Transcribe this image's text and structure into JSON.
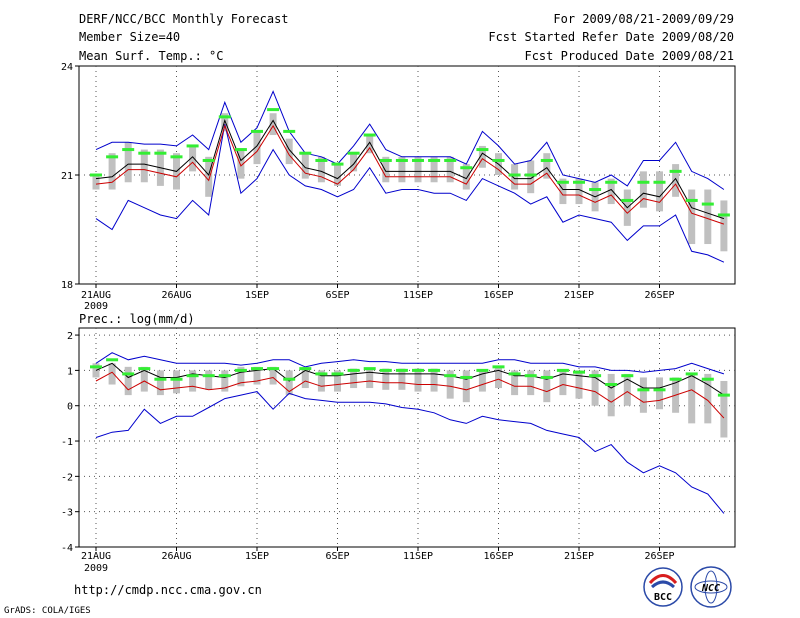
{
  "header": {
    "line1": "DERF/NCC/BCC Monthly Forecast",
    "line2": "Member Size=40",
    "line3": "Mean Surf. Temp.: °C",
    "right1": "For 2009/08/21-2009/09/29",
    "right2": "Fcst Started Refer Date 2009/08/20",
    "right3": "Fcst Produced Date 2009/08/21"
  },
  "lower_title": "Prec.: log(mm/d)",
  "footer": {
    "url": "http://cmdp.ncc.cma.gov.cn",
    "grads": "GrADS: COLA/IGES",
    "bcc_logo_text": "BCC",
    "ncc_logo_text": "NCC"
  },
  "colors": {
    "max_min": "#0000cc",
    "ensemble_mean": "#000000",
    "reference": "#cc0000",
    "member_dash": "#33ee33",
    "box": "#c0c0c0"
  },
  "chart_data": [
    {
      "type": "line",
      "title": "Mean Surf. Temp.: °C",
      "x_tick_labels": [
        "21AUG",
        "26AUG",
        "1SEP",
        "6SEP",
        "11SEP",
        "16SEP",
        "21SEP",
        "26SEP"
      ],
      "x_year_label": "2009",
      "y_tick_labels": [
        "18",
        "21",
        "24"
      ],
      "ylim": [
        18,
        24
      ],
      "days": 40,
      "series": [
        {
          "name": "max",
          "values": [
            21.7,
            21.9,
            21.9,
            21.85,
            21.85,
            21.8,
            22.1,
            21.7,
            23.0,
            21.9,
            22.3,
            23.3,
            22.2,
            21.6,
            21.5,
            21.3,
            21.8,
            22.4,
            21.7,
            21.5,
            21.5,
            21.5,
            21.5,
            21.3,
            22.2,
            21.8,
            21.3,
            21.4,
            21.9,
            21.0,
            20.9,
            20.8,
            21.0,
            20.7,
            21.4,
            21.4,
            21.9,
            21.1,
            20.9,
            20.6
          ]
        },
        {
          "name": "min",
          "values": [
            19.8,
            19.5,
            20.3,
            20.1,
            19.9,
            19.8,
            20.3,
            19.9,
            22.4,
            20.5,
            20.9,
            21.7,
            21.0,
            20.7,
            20.6,
            20.4,
            20.6,
            21.2,
            20.5,
            20.6,
            20.6,
            20.5,
            20.5,
            20.3,
            20.9,
            20.7,
            20.5,
            20.2,
            20.4,
            19.7,
            19.9,
            19.8,
            19.7,
            19.2,
            19.6,
            19.6,
            19.9,
            18.9,
            18.8,
            18.6
          ]
        },
        {
          "name": "ensemble mean",
          "values": [
            20.9,
            20.95,
            21.3,
            21.3,
            21.2,
            21.1,
            21.5,
            21.0,
            22.5,
            21.4,
            21.8,
            22.5,
            21.7,
            21.2,
            21.1,
            20.9,
            21.3,
            21.9,
            21.1,
            21.1,
            21.1,
            21.1,
            21.1,
            20.9,
            21.6,
            21.3,
            20.9,
            20.9,
            21.2,
            20.6,
            20.6,
            20.4,
            20.6,
            20.1,
            20.5,
            20.4,
            20.9,
            20.1,
            19.95,
            19.8
          ]
        },
        {
          "name": "reference",
          "values": [
            20.75,
            20.8,
            21.15,
            21.15,
            21.05,
            20.95,
            21.35,
            20.85,
            22.35,
            21.25,
            21.65,
            22.35,
            21.55,
            21.05,
            20.95,
            20.75,
            21.15,
            21.75,
            20.95,
            20.95,
            20.95,
            20.95,
            20.95,
            20.75,
            21.45,
            21.15,
            20.75,
            20.75,
            21.05,
            20.45,
            20.45,
            20.25,
            20.45,
            19.95,
            20.35,
            20.25,
            20.75,
            19.95,
            19.8,
            19.65
          ]
        },
        {
          "name": "member mark",
          "values": [
            21.0,
            21.5,
            21.7,
            21.6,
            21.6,
            21.5,
            21.8,
            21.4,
            22.6,
            21.7,
            22.2,
            22.8,
            22.2,
            21.6,
            21.4,
            21.3,
            21.6,
            22.1,
            21.4,
            21.4,
            21.4,
            21.4,
            21.4,
            21.2,
            21.7,
            21.4,
            21.0,
            21.0,
            21.4,
            20.8,
            20.8,
            20.6,
            20.8,
            20.3,
            20.8,
            20.8,
            21.1,
            20.3,
            20.2,
            19.9
          ]
        },
        {
          "name": "box upper",
          "values": [
            21.0,
            21.6,
            21.9,
            21.7,
            21.7,
            21.6,
            21.8,
            21.5,
            22.7,
            21.7,
            22.2,
            22.7,
            22.0,
            21.6,
            21.5,
            21.3,
            21.6,
            22.1,
            21.5,
            21.5,
            21.5,
            21.5,
            21.5,
            21.3,
            21.8,
            21.6,
            21.3,
            21.4,
            21.6,
            20.9,
            20.9,
            20.8,
            20.9,
            20.6,
            21.1,
            21.1,
            21.3,
            20.6,
            20.6,
            20.3
          ]
        },
        {
          "name": "box lower",
          "values": [
            20.6,
            20.6,
            20.8,
            20.8,
            20.7,
            20.6,
            21.1,
            20.4,
            22.2,
            20.9,
            21.3,
            22.1,
            21.3,
            20.9,
            20.8,
            20.7,
            21.1,
            21.6,
            20.8,
            20.8,
            20.8,
            20.8,
            20.8,
            20.6,
            21.2,
            21.0,
            20.6,
            20.5,
            20.9,
            20.2,
            20.2,
            20.0,
            20.2,
            19.6,
            20.1,
            20.0,
            20.4,
            19.1,
            19.1,
            18.9
          ]
        }
      ]
    },
    {
      "type": "line",
      "title": "Prec.: log(mm/d)",
      "x_tick_labels": [
        "21AUG",
        "26AUG",
        "1SEP",
        "6SEP",
        "11SEP",
        "16SEP",
        "21SEP",
        "26SEP"
      ],
      "x_year_label": "2009",
      "y_tick_labels": [
        "-4",
        "-3",
        "-2",
        "-1",
        "0",
        "1",
        "2"
      ],
      "ylim": [
        -4,
        2.2
      ],
      "days": 40,
      "series": [
        {
          "name": "max",
          "values": [
            1.2,
            1.5,
            1.3,
            1.4,
            1.3,
            1.2,
            1.2,
            1.2,
            1.2,
            1.15,
            1.2,
            1.3,
            1.3,
            1.1,
            1.2,
            1.25,
            1.3,
            1.25,
            1.25,
            1.2,
            1.2,
            1.2,
            1.2,
            1.2,
            1.2,
            1.3,
            1.3,
            1.2,
            1.2,
            1.2,
            1.1,
            1.1,
            1.0,
            1.0,
            0.95,
            1.0,
            1.05,
            1.2,
            1.05,
            0.9
          ]
        },
        {
          "name": "min",
          "values": [
            -0.9,
            -0.75,
            -0.7,
            -0.1,
            -0.5,
            -0.3,
            -0.3,
            -0.05,
            0.2,
            0.3,
            0.4,
            -0.1,
            0.35,
            0.2,
            0.15,
            0.1,
            0.1,
            0.1,
            0.05,
            -0.05,
            -0.1,
            -0.2,
            -0.4,
            -0.5,
            -0.3,
            -0.4,
            -0.45,
            -0.5,
            -0.7,
            -0.8,
            -0.9,
            -1.3,
            -1.1,
            -1.6,
            -1.9,
            -1.7,
            -1.9,
            -2.3,
            -2.5,
            -3.05
          ]
        },
        {
          "name": "ensemble mean",
          "values": [
            1.0,
            1.2,
            0.8,
            1.0,
            0.8,
            0.8,
            0.9,
            0.85,
            0.8,
            0.95,
            1.0,
            1.05,
            0.7,
            1.0,
            0.85,
            0.85,
            0.9,
            0.95,
            0.9,
            0.9,
            0.9,
            0.9,
            0.85,
            0.75,
            0.9,
            1.0,
            0.85,
            0.85,
            0.75,
            0.9,
            0.85,
            0.8,
            0.5,
            0.75,
            0.5,
            0.5,
            0.65,
            0.85,
            0.6,
            0.3
          ]
        },
        {
          "name": "reference",
          "values": [
            0.7,
            0.95,
            0.45,
            0.7,
            0.45,
            0.5,
            0.55,
            0.45,
            0.5,
            0.65,
            0.7,
            0.8,
            0.4,
            0.7,
            0.55,
            0.6,
            0.65,
            0.7,
            0.65,
            0.65,
            0.6,
            0.6,
            0.55,
            0.45,
            0.6,
            0.75,
            0.55,
            0.55,
            0.4,
            0.6,
            0.5,
            0.4,
            0.1,
            0.4,
            0.1,
            0.15,
            0.3,
            0.45,
            0.15,
            -0.35
          ]
        },
        {
          "name": "member mark",
          "values": [
            1.1,
            1.3,
            0.9,
            1.05,
            0.75,
            0.75,
            0.85,
            0.85,
            0.85,
            1.0,
            1.05,
            1.05,
            0.75,
            1.05,
            0.9,
            0.9,
            1.0,
            1.05,
            1.0,
            1.0,
            1.0,
            1.0,
            0.85,
            0.8,
            1.0,
            1.1,
            0.9,
            0.85,
            0.8,
            1.0,
            0.95,
            0.85,
            0.6,
            0.85,
            0.45,
            0.45,
            0.75,
            0.9,
            0.75,
            0.3
          ]
        },
        {
          "name": "box upper",
          "values": [
            1.2,
            1.2,
            1.1,
            1.1,
            1.0,
            1.0,
            1.0,
            1.0,
            1.0,
            1.1,
            1.1,
            1.1,
            1.0,
            1.1,
            1.0,
            1.0,
            1.05,
            1.05,
            1.05,
            1.05,
            1.05,
            1.05,
            1.0,
            1.0,
            1.0,
            1.1,
            1.0,
            1.0,
            1.0,
            1.0,
            1.0,
            1.0,
            0.9,
            0.9,
            0.8,
            0.8,
            0.8,
            0.9,
            0.9,
            0.7
          ]
        },
        {
          "name": "box lower",
          "values": [
            0.8,
            0.6,
            0.3,
            0.4,
            0.3,
            0.35,
            0.4,
            0.45,
            0.4,
            0.55,
            0.6,
            0.6,
            0.3,
            0.5,
            0.4,
            0.4,
            0.5,
            0.5,
            0.45,
            0.45,
            0.4,
            0.4,
            0.2,
            0.1,
            0.4,
            0.5,
            0.3,
            0.3,
            0.1,
            0.3,
            0.2,
            0.0,
            -0.3,
            0.0,
            -0.2,
            -0.1,
            -0.2,
            -0.5,
            -0.5,
            -0.9
          ]
        }
      ]
    }
  ]
}
